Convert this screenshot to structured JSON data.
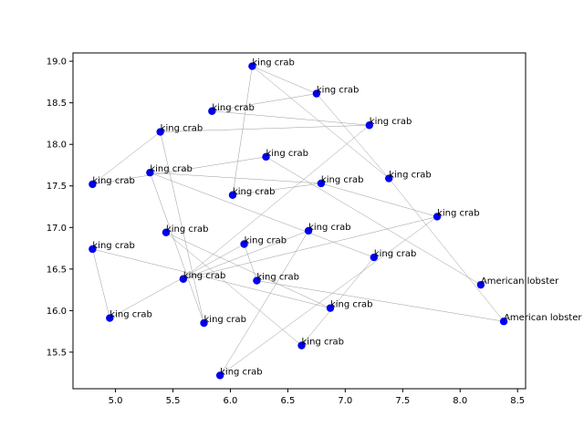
{
  "chart_data": {
    "type": "scatter",
    "title": "",
    "xlabel": "",
    "ylabel": "",
    "xlim": [
      4.63,
      8.57
    ],
    "ylim": [
      15.06,
      19.1
    ],
    "grid": false,
    "x_ticks": [
      "5.0",
      "5.5",
      "6.0",
      "6.5",
      "7.0",
      "7.5",
      "8.0",
      "8.5"
    ],
    "y_ticks": [
      "15.5",
      "16.0",
      "16.5",
      "17.0",
      "17.5",
      "18.0",
      "18.5",
      "19.0"
    ],
    "point_color": "#0000ee",
    "edge_color": "#999999",
    "points": [
      {
        "x": 6.19,
        "y": 18.94,
        "label": "king crab"
      },
      {
        "x": 6.75,
        "y": 18.61,
        "label": "king crab"
      },
      {
        "x": 5.84,
        "y": 18.4,
        "label": "king crab"
      },
      {
        "x": 7.21,
        "y": 18.23,
        "label": "king crab"
      },
      {
        "x": 5.39,
        "y": 18.15,
        "label": "king crab"
      },
      {
        "x": 6.31,
        "y": 17.85,
        "label": "king crab"
      },
      {
        "x": 5.3,
        "y": 17.66,
        "label": "king crab"
      },
      {
        "x": 4.8,
        "y": 17.52,
        "label": "king crab"
      },
      {
        "x": 6.79,
        "y": 17.53,
        "label": "king crab"
      },
      {
        "x": 7.38,
        "y": 17.59,
        "label": "king crab"
      },
      {
        "x": 6.02,
        "y": 17.39,
        "label": "king crab"
      },
      {
        "x": 7.8,
        "y": 17.13,
        "label": "king crab"
      },
      {
        "x": 5.44,
        "y": 16.94,
        "label": "king crab"
      },
      {
        "x": 6.68,
        "y": 16.96,
        "label": "king crab"
      },
      {
        "x": 4.8,
        "y": 16.74,
        "label": "king crab"
      },
      {
        "x": 6.12,
        "y": 16.8,
        "label": "king crab"
      },
      {
        "x": 7.25,
        "y": 16.64,
        "label": "king crab"
      },
      {
        "x": 5.59,
        "y": 16.38,
        "label": "king crab"
      },
      {
        "x": 6.23,
        "y": 16.36,
        "label": "king crab"
      },
      {
        "x": 8.18,
        "y": 16.31,
        "label": "American lobster"
      },
      {
        "x": 6.87,
        "y": 16.03,
        "label": "king crab"
      },
      {
        "x": 4.95,
        "y": 15.91,
        "label": "king crab"
      },
      {
        "x": 5.77,
        "y": 15.85,
        "label": "king crab"
      },
      {
        "x": 8.38,
        "y": 15.87,
        "label": "American lobster"
      },
      {
        "x": 6.62,
        "y": 15.58,
        "label": "king crab"
      },
      {
        "x": 5.91,
        "y": 15.22,
        "label": "king crab"
      }
    ],
    "edges": [
      [
        0,
        10
      ],
      [
        0,
        9
      ],
      [
        0,
        1
      ],
      [
        1,
        2
      ],
      [
        2,
        3
      ],
      [
        3,
        4
      ],
      [
        4,
        7
      ],
      [
        4,
        22
      ],
      [
        5,
        7
      ],
      [
        5,
        19
      ],
      [
        6,
        8
      ],
      [
        6,
        16
      ],
      [
        8,
        10
      ],
      [
        8,
        11
      ],
      [
        11,
        17
      ],
      [
        12,
        24
      ],
      [
        12,
        20
      ],
      [
        13,
        17
      ],
      [
        13,
        25
      ],
      [
        14,
        21
      ],
      [
        14,
        20
      ],
      [
        15,
        18
      ],
      [
        16,
        24
      ],
      [
        17,
        3
      ],
      [
        18,
        23
      ],
      [
        21,
        15
      ],
      [
        22,
        6
      ],
      [
        25,
        11
      ],
      [
        1,
        9
      ],
      [
        9,
        23
      ]
    ]
  }
}
